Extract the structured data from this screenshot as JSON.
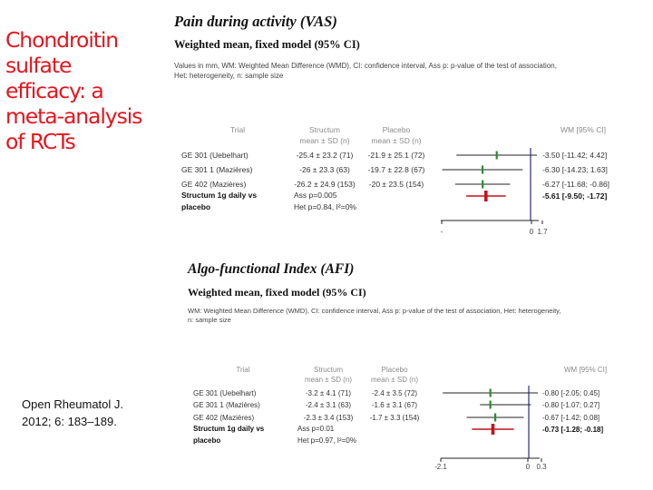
{
  "slide": {
    "title_lines": [
      "Chondroitin",
      "sulfate",
      "efficacy: a",
      "meta-analysis",
      "of RCTs"
    ],
    "citation_lines": [
      "Open Rheumatol J.",
      "2012; 6: 183–189."
    ]
  },
  "colors": {
    "title": "#e8141c",
    "marker_study": "#2e8b2e",
    "marker_pooled": "#c0141c",
    "axis": "#2b2b8a",
    "text": "#333333"
  },
  "columns": {
    "trial": "Trial",
    "structum": "Structum",
    "placebo": "Placebo",
    "stat_line2": "mean ± SD (n)",
    "wm": "WM [95% CI]"
  },
  "panels": [
    {
      "title": "Pain during activity (VAS)",
      "subtitle": "Weighted mean, fixed model (95% CI)",
      "note_lines": [
        "Values in mm, WM: Weighted Mean Difference (WMD), CI: confidence interval, Ass p: p-value of the test of association,",
        "Het: heterogeneity, n: sample size"
      ]
    },
    {
      "title": "Algo-functional Index (AFI)",
      "subtitle": "Weighted mean, fixed model (95% CI)",
      "note_lines": [
        "WM: Weighted Mean Difference (WMD), CI: confidence interval, Ass p: p-value of the test of association, Het: heterogeneity,",
        "n: sample size"
      ]
    }
  ],
  "chart_data": [
    {
      "type": "forest",
      "title": "Pain during activity (VAS)",
      "subtitle": "Weighted mean, fixed model (95% CI)",
      "xlim": [
        -14.5,
        4.42
      ],
      "x_ticks": [
        "-",
        "0",
        "1.7"
      ],
      "studies": [
        {
          "name": "GE 301 (Uebelhart)",
          "structum": "-25.4 ± 23.2 (71)",
          "placebo": "-21.9 ± 25.1 (72)",
          "wm": -3.5,
          "ci_low": -11.42,
          "ci_high": 4.42,
          "wm_text": "-3.50 [-11.42; 4.42]"
        },
        {
          "name": "GE 301 1 (Mazières)",
          "structum": "-26 ± 23.3 (63)",
          "placebo": "-19.7 ± 22.8 (67)",
          "wm": -6.3,
          "ci_low": -14.23,
          "ci_high": 1.63,
          "wm_text": "-6.30 [-14.23; 1.63]"
        },
        {
          "name": "GE 402 (Mazières)",
          "structum": "-26.2 ± 24.9 (153)",
          "placebo": "-20 ± 23.5 (154)",
          "wm": -6.27,
          "ci_low": -11.68,
          "ci_high": -0.86,
          "wm_text": "-6.27 [-11.68; -0.86]"
        }
      ],
      "pooled": {
        "name_lines": [
          "Structum 1g daily vs",
          "placebo"
        ],
        "ass": "Ass p=0.005",
        "het": "Het p=0.84, I²=0%",
        "wm": -5.61,
        "ci_low": -9.5,
        "ci_high": -1.72,
        "wm_text": "-5.61 [-9.50; -1.72]"
      }
    },
    {
      "type": "forest",
      "title": "Algo-functional Index (AFI)",
      "subtitle": "Weighted mean, fixed model (95% CI)",
      "xlim": [
        -2.1,
        0.45
      ],
      "x_ticks": [
        "-2.1",
        "0",
        "0.3"
      ],
      "studies": [
        {
          "name": "GE 301 (Uebelhart)",
          "structum": "-3.2 ± 4.1 (71)",
          "placebo": "-2.4 ± 3.5 (72)",
          "wm": -0.8,
          "ci_low": -2.05,
          "ci_high": 0.45,
          "wm_text": "-0.80 [-2.05; 0.45]"
        },
        {
          "name": "GE 301 1 (Mazières)",
          "structum": "-2.4 ± 3.1 (63)",
          "placebo": "-1.6 ± 3.1 (67)",
          "wm": -0.8,
          "ci_low": -1.07,
          "ci_high": 0.27,
          "wm_text": "-0.80 [-1.07; 0.27]"
        },
        {
          "name": "GE 402 (Mazières)",
          "structum": "-2.3 ± 3.4 (153)",
          "placebo": "-1.7 ± 3.3 (154)",
          "wm": -0.67,
          "ci_low": -1.42,
          "ci_high": 0.08,
          "wm_text": "-0.67 [-1.42; 0.08]"
        }
      ],
      "pooled": {
        "name_lines": [
          "Structum 1g daily vs",
          "placebo"
        ],
        "ass": "Ass p=0.01",
        "het": "Het p=0.97, I²=0%",
        "wm": -0.73,
        "ci_low": -1.28,
        "ci_high": -0.18,
        "wm_text": "-0.73 [-1.28; -0.18]"
      }
    }
  ]
}
